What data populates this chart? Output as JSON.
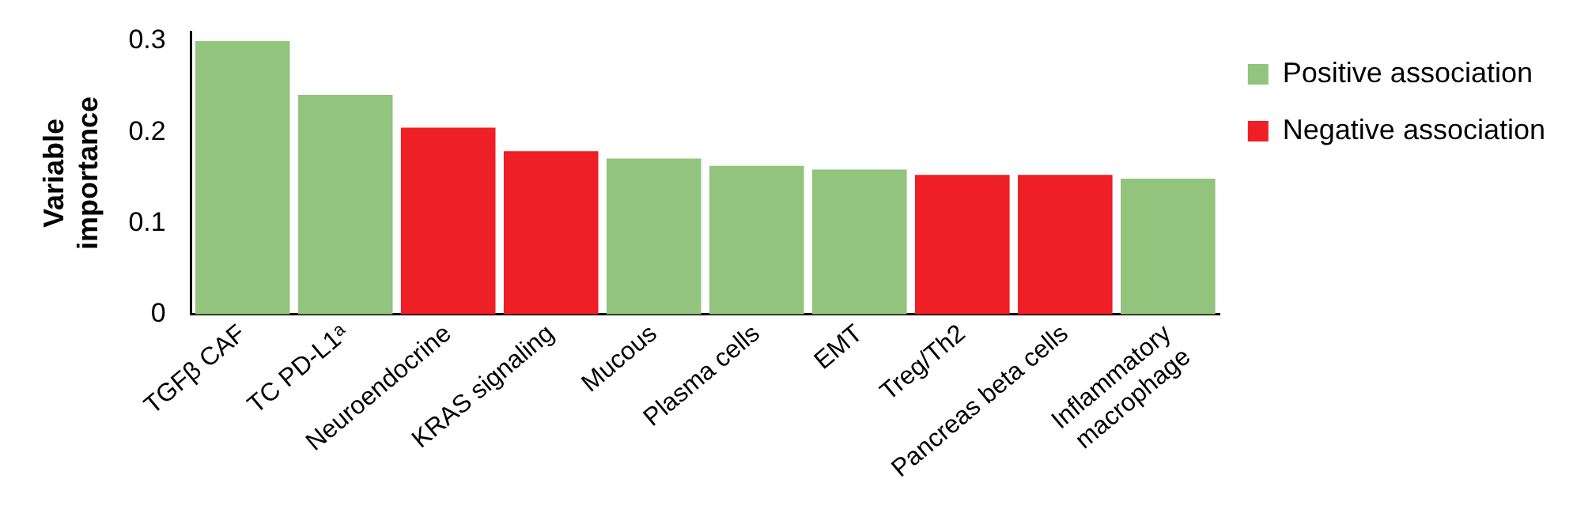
{
  "chart_data": {
    "type": "bar",
    "ylabel": "Variable importance",
    "categories": [
      "TGFβ CAF",
      "TC PD-L1ᵃ",
      "Neuroendocrine",
      "KRAS signaling",
      "Mucous",
      "Plasma cells",
      "EMT",
      "Treg/Th2",
      "Pancreas beta cells",
      "Inflammatory macrophage"
    ],
    "series": [
      {
        "name": "Positive association",
        "color": "#93c47d",
        "values": [
          0.3,
          0.241,
          null,
          null,
          0.171,
          0.163,
          0.159,
          null,
          null,
          0.149
        ]
      },
      {
        "name": "Negative association",
        "color": "#ee1f25",
        "values": [
          null,
          null,
          0.205,
          0.179,
          null,
          null,
          null,
          0.153,
          0.153,
          null
        ]
      }
    ],
    "ylim": [
      0,
      0.31
    ],
    "yticks": [
      0,
      0.1,
      0.2,
      0.3
    ],
    "grid": false,
    "legend": "top right"
  }
}
